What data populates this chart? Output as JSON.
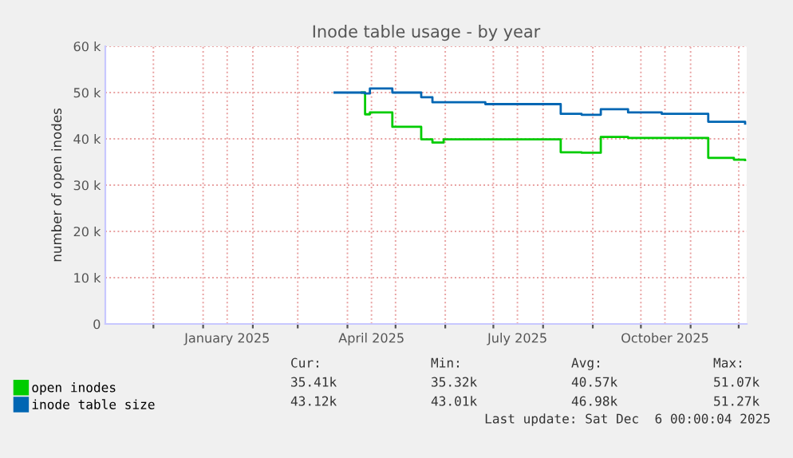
{
  "chart_data": {
    "type": "step",
    "title": "Inode table usage - by year",
    "ylabel": "number of open inodes",
    "series": [
      {
        "name": "open inodes",
        "color": "#00cc00",
        "x": [
          "2025-04-10",
          "2025-04-12",
          "2025-04-15",
          "2025-04-29",
          "2025-05-17",
          "2025-05-24",
          "2025-05-31",
          "2025-08-12",
          "2025-08-25",
          "2025-09-06",
          "2025-09-23",
          "2025-11-12",
          "2025-11-28",
          "2025-12-05"
        ],
        "values": [
          50000,
          45300,
          45700,
          42600,
          39900,
          39200,
          39900,
          37100,
          37000,
          40400,
          40200,
          35900,
          35500,
          35400
        ]
      },
      {
        "name": "inode table size",
        "color": "#0066b3",
        "x": [
          "2025-03-24",
          "2025-04-12",
          "2025-04-15",
          "2025-04-29",
          "2025-05-17",
          "2025-05-24",
          "2025-06-26",
          "2025-08-12",
          "2025-08-25",
          "2025-09-06",
          "2025-09-23",
          "2025-10-14",
          "2025-11-12",
          "2025-12-05"
        ],
        "values": [
          50000,
          49800,
          50900,
          50000,
          49000,
          47900,
          47500,
          45400,
          45200,
          46400,
          45700,
          45400,
          43700,
          43300
        ]
      }
    ],
    "xlim": [
      "2024-11-01",
      "2025-12-06"
    ],
    "xticks": [
      {
        "value": "2024-12-01",
        "label": null
      },
      {
        "value": "2025-01-01",
        "label": null
      },
      {
        "value": "2025-01-16",
        "label": "January 2025"
      },
      {
        "value": "2025-02-01",
        "label": null
      },
      {
        "value": "2025-03-01",
        "label": null
      },
      {
        "value": "2025-04-01",
        "label": null
      },
      {
        "value": "2025-04-16",
        "label": "April 2025"
      },
      {
        "value": "2025-05-01",
        "label": null
      },
      {
        "value": "2025-06-01",
        "label": null
      },
      {
        "value": "2025-07-01",
        "label": null
      },
      {
        "value": "2025-07-16",
        "label": "July 2025"
      },
      {
        "value": "2025-08-01",
        "label": null
      },
      {
        "value": "2025-09-01",
        "label": null
      },
      {
        "value": "2025-10-01",
        "label": null
      },
      {
        "value": "2025-10-16",
        "label": "October 2025"
      },
      {
        "value": "2025-11-01",
        "label": null
      },
      {
        "value": "2025-12-01",
        "label": null
      }
    ],
    "ylim": [
      0,
      60000
    ],
    "yticks": [
      0,
      {
        "value": 10000,
        "label": "10 k"
      },
      {
        "value": 20000,
        "label": "20 k"
      },
      {
        "value": 30000,
        "label": "30 k"
      },
      {
        "value": 40000,
        "label": "40 k"
      },
      {
        "value": 50000,
        "label": "50 k"
      },
      {
        "value": 60000,
        "label": "60 k"
      }
    ],
    "grid": true,
    "legend": "bottom",
    "annotations": [
      "Cur:",
      "Min:",
      "Avg:",
      "Max:",
      "35.41k",
      "35.32k",
      "40.57k",
      "51.07k",
      "43.12k",
      "43.01k",
      "46.98k",
      "51.27k",
      "Last update: Sat Dec  6 00:00:04 2025"
    ]
  }
}
